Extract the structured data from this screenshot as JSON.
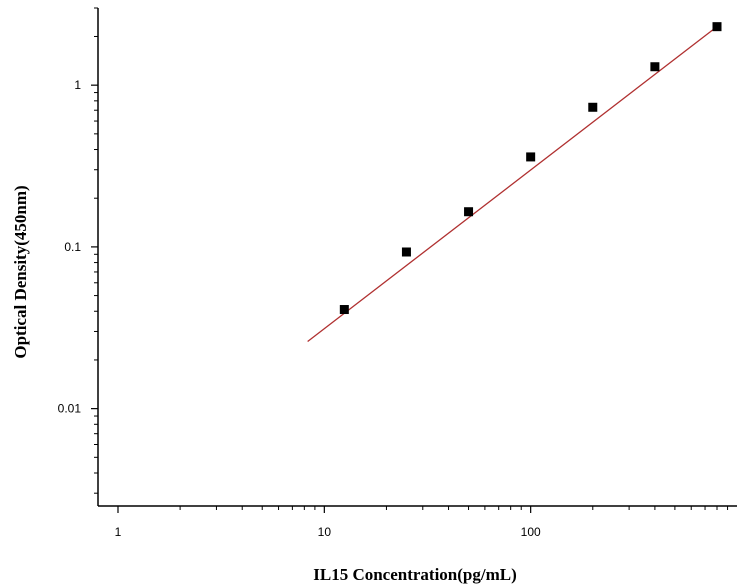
{
  "chart_data": {
    "type": "scatter",
    "title": "",
    "xlabel": "IL15 Concentration(pg/mL)",
    "ylabel": "Optical Density(450nm)",
    "x_scale": "log",
    "y_scale": "log",
    "xlim": [
      0.8,
      1000
    ],
    "ylim": [
      0.0025,
      3
    ],
    "grid": false,
    "x_ticks": [
      {
        "value": 1,
        "label": "1"
      },
      {
        "value": 10,
        "label": "10"
      },
      {
        "value": 100,
        "label": "100"
      }
    ],
    "y_ticks": [
      {
        "value": 0.01,
        "label": "0.01"
      },
      {
        "value": 0.1,
        "label": "0.1"
      },
      {
        "value": 1,
        "label": "1"
      }
    ],
    "series": [
      {
        "kind": "points",
        "marker": "square",
        "x": [
          12.5,
          25,
          50,
          100,
          200,
          400,
          800
        ],
        "y": [
          0.041,
          0.093,
          0.165,
          0.36,
          0.73,
          1.3,
          2.3
        ]
      },
      {
        "kind": "fit-line",
        "x": [
          8.3,
          800
        ],
        "y": [
          0.026,
          2.3
        ]
      }
    ],
    "colors": {
      "points": "#000000",
      "fit_line": "#b03030",
      "axes": "#000000"
    }
  }
}
